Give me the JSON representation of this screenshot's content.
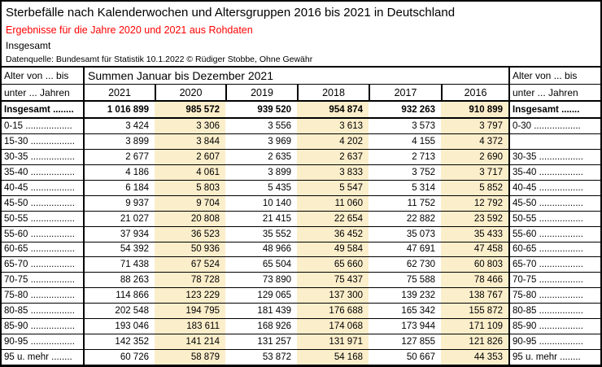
{
  "header": {
    "title": "Sterbefälle nach Kalenderwochen und Altersgruppen 2016 bis 2021 in Deutschland",
    "subtitle": "Ergebnisse für die Jahre 2020 und 2021 aus Rohdaten",
    "scope": "Insgesamt",
    "source": "Datenquelle: Bundesamt für Statistik 10.1.2022 © Rüdiger Stobbe, Ohne Gewähr"
  },
  "table": {
    "age_header_line1": "Alter von ... bis",
    "age_header_line2": "unter ... Jahren",
    "span_header": "Summen Januar bis Dezember 2021",
    "years": [
      "2021",
      "2020",
      "2019",
      "2018",
      "2017",
      "2016"
    ],
    "highlighted_years": [
      "2020",
      "2018",
      "2016"
    ],
    "highlight_color": "#FBEECB",
    "totals": {
      "label_left": "Insgesamt ........",
      "values": [
        "1 016 899",
        "985 572",
        "939 520",
        "954 874",
        "932 263",
        "910 899"
      ],
      "label_right": "Insgesamt ......."
    },
    "rows": [
      {
        "left": "0-15 ..................",
        "values": [
          "3 424",
          "3 306",
          "3 556",
          "3 613",
          "3 573",
          "3 797"
        ],
        "right": "0-30 .................."
      },
      {
        "left": "15-30 .................",
        "values": [
          "3 899",
          "3 844",
          "3 969",
          "4 202",
          "4 155",
          "4 372"
        ],
        "right": ""
      },
      {
        "left": "30-35 .................",
        "values": [
          "2 677",
          "2 607",
          "2 635",
          "2 637",
          "2 713",
          "2 690"
        ],
        "right": "30-35 ................."
      },
      {
        "left": "35-40 .................",
        "values": [
          "4 186",
          "4 061",
          "3 899",
          "3 833",
          "3 752",
          "3 717"
        ],
        "right": "35-40 ................."
      },
      {
        "left": "40-45 .................",
        "values": [
          "6 184",
          "5 803",
          "5 435",
          "5 547",
          "5 314",
          "5 852"
        ],
        "right": "40-45 ................."
      },
      {
        "left": "45-50 .................",
        "values": [
          "9 937",
          "9 704",
          "10 140",
          "11 060",
          "11 752",
          "12 792"
        ],
        "right": "45-50 ................."
      },
      {
        "left": "50-55 .................",
        "values": [
          "21 027",
          "20 808",
          "21 415",
          "22 654",
          "22 882",
          "23 592"
        ],
        "right": "50-55 ................."
      },
      {
        "left": "55-60 .................",
        "values": [
          "37 934",
          "36 523",
          "35 552",
          "36 452",
          "35 073",
          "35 433"
        ],
        "right": "55-60 ................."
      },
      {
        "left": "60-65 .................",
        "values": [
          "54 392",
          "50 936",
          "48 966",
          "49 584",
          "47 691",
          "47 458"
        ],
        "right": "60-65 ................."
      },
      {
        "left": "65-70 .................",
        "values": [
          "71 438",
          "67 524",
          "65 504",
          "65 660",
          "62 730",
          "60 803"
        ],
        "right": "65-70 ................."
      },
      {
        "left": "70-75 .................",
        "values": [
          "88 263",
          "78 728",
          "73 890",
          "75 437",
          "75 588",
          "78 466"
        ],
        "right": "70-75 ................."
      },
      {
        "left": "75-80 .................",
        "values": [
          "114 866",
          "123 229",
          "129 065",
          "137 300",
          "139 232",
          "138 767"
        ],
        "right": "75-80 ................."
      },
      {
        "left": "80-85 .................",
        "values": [
          "202 548",
          "194 795",
          "181 439",
          "176 688",
          "165 342",
          "155 872"
        ],
        "right": "80-85 ................."
      },
      {
        "left": "85-90 .................",
        "values": [
          "193 046",
          "183 611",
          "168 926",
          "174 068",
          "173 944",
          "171 109"
        ],
        "right": "85-90 ................."
      },
      {
        "left": "90-95 .................",
        "values": [
          "142 352",
          "141 214",
          "131 257",
          "131 971",
          "127 855",
          "121 826"
        ],
        "right": "90-95 ................."
      },
      {
        "left": "95 u. mehr ........",
        "values": [
          "60 726",
          "58 879",
          "53 872",
          "54 168",
          "50 667",
          "44 353"
        ],
        "right": "95 u. mehr ........"
      }
    ]
  }
}
